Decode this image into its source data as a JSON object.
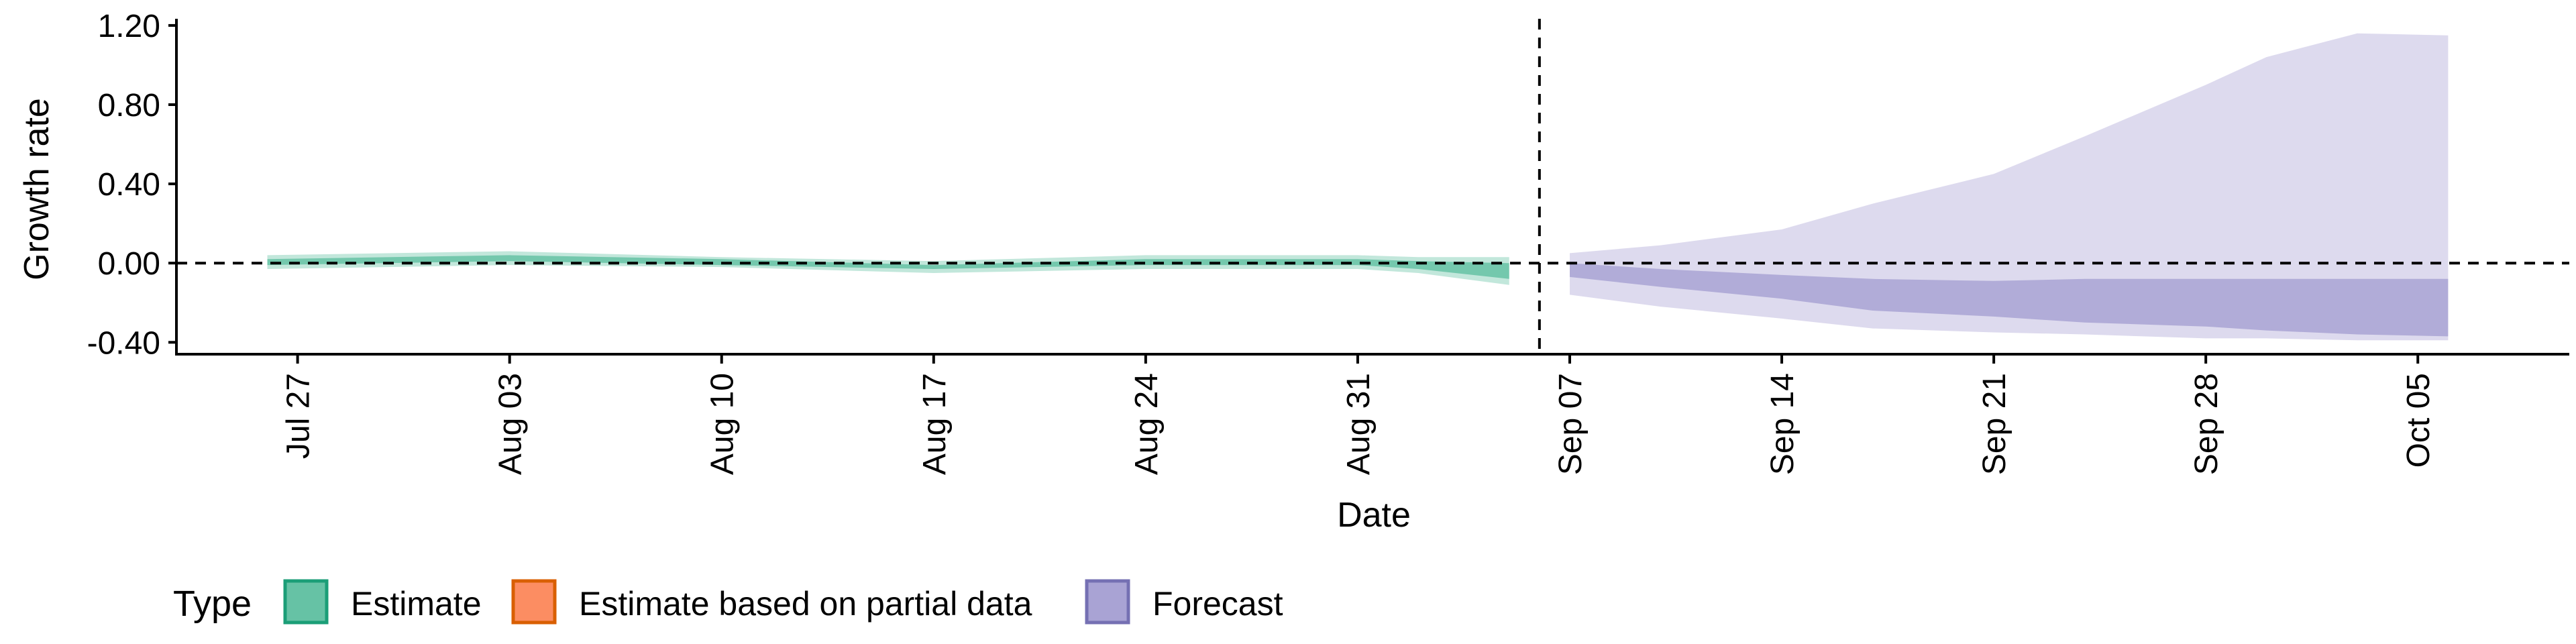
{
  "chart_data": {
    "type": "area",
    "xlabel": "Date",
    "ylabel": "Growth rate",
    "x_range": [
      "2020-07-23",
      "2020-10-10"
    ],
    "ylim": [
      -0.46,
      1.22
    ],
    "y_ticks": [
      -0.4,
      0.0,
      0.4,
      0.8,
      1.2
    ],
    "y_tick_labels": [
      "-0.40",
      "0.00",
      "0.40",
      "0.80",
      "1.20"
    ],
    "x_ticks": [
      "2020-07-27",
      "2020-08-03",
      "2020-08-10",
      "2020-08-17",
      "2020-08-24",
      "2020-08-31",
      "2020-09-07",
      "2020-09-14",
      "2020-09-21",
      "2020-09-28",
      "2020-10-05"
    ],
    "x_tick_labels": [
      "Jul 27",
      "Aug 03",
      "Aug 10",
      "Aug 17",
      "Aug 24",
      "Aug 31",
      "Sep 07",
      "Sep 14",
      "Sep 21",
      "Sep 28",
      "Oct 05"
    ],
    "hline_y": 0,
    "vline_date": "2020-09-06",
    "grid": false,
    "legend": {
      "title": "Type",
      "position": "bottom-left",
      "items": [
        {
          "label": "Estimate",
          "color": "#66c2a5",
          "border": "#1b9e77"
        },
        {
          "label": "Estimate based on partial data",
          "color": "#fc8d62",
          "border": "#d95f02"
        },
        {
          "label": "Forecast",
          "color": "#a9a3d4",
          "border": "#7570b3"
        }
      ]
    },
    "series": [
      {
        "name": "Estimate",
        "color": "#66c2a5",
        "x": [
          "2020-07-26",
          "2020-08-03",
          "2020-08-10",
          "2020-08-17",
          "2020-08-24",
          "2020-08-31",
          "2020-09-02",
          "2020-09-05"
        ],
        "outer_lower": [
          -0.03,
          -0.01,
          -0.02,
          -0.05,
          -0.03,
          -0.03,
          -0.05,
          -0.11
        ],
        "outer_upper": [
          0.04,
          0.06,
          0.03,
          0.01,
          0.04,
          0.04,
          0.03,
          0.03
        ],
        "inner_lower": [
          -0.01,
          0.01,
          -0.01,
          -0.03,
          -0.01,
          -0.01,
          -0.03,
          -0.08
        ],
        "inner_upper": [
          0.02,
          0.04,
          0.02,
          -0.01,
          0.02,
          0.02,
          0.01,
          0.0
        ]
      },
      {
        "name": "Forecast",
        "color": "#a9a3d4",
        "x": [
          "2020-09-07",
          "2020-09-10",
          "2020-09-14",
          "2020-09-17",
          "2020-09-21",
          "2020-09-24",
          "2020-09-28",
          "2020-09-30",
          "2020-10-03",
          "2020-10-06"
        ],
        "outer_lower": [
          -0.16,
          -0.22,
          -0.28,
          -0.33,
          -0.35,
          -0.36,
          -0.38,
          -0.38,
          -0.39,
          -0.39
        ],
        "outer_upper": [
          0.05,
          0.09,
          0.17,
          0.3,
          0.45,
          0.64,
          0.9,
          1.04,
          1.16,
          1.15
        ],
        "inner_lower": [
          -0.07,
          -0.12,
          -0.18,
          -0.24,
          -0.27,
          -0.3,
          -0.32,
          -0.34,
          -0.36,
          -0.37
        ],
        "inner_upper": [
          0.0,
          -0.03,
          -0.06,
          -0.08,
          -0.09,
          -0.08,
          -0.08,
          -0.08,
          -0.08,
          -0.08
        ]
      }
    ]
  }
}
